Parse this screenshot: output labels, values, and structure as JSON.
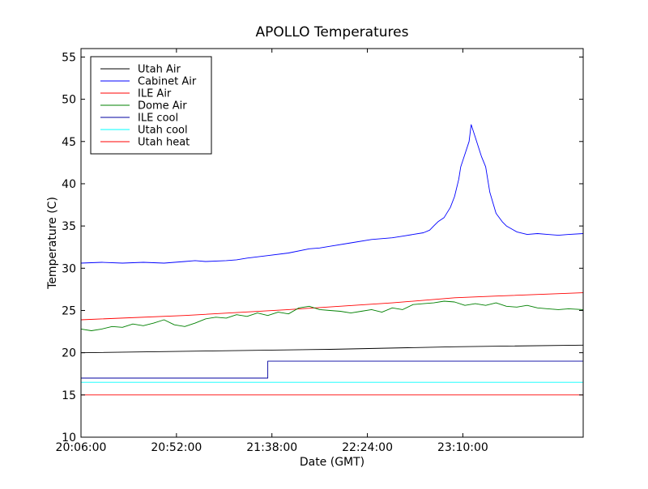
{
  "chart_data": {
    "type": "line",
    "title": "APOLLO Temperatures",
    "xlabel": "Date (GMT)",
    "ylabel": "Temperature (C)",
    "x_unit": "minutes since 20:06:00",
    "xlim": [
      0,
      242
    ],
    "ylim": [
      10,
      56
    ],
    "grid": false,
    "legend_position": "top-left",
    "x_ticks": [
      {
        "value": 0,
        "label": "20:06:00"
      },
      {
        "value": 46,
        "label": "20:52:00"
      },
      {
        "value": 92,
        "label": "21:38:00"
      },
      {
        "value": 138,
        "label": "22:24:00"
      },
      {
        "value": 184,
        "label": "23:10:00"
      }
    ],
    "y_ticks": [
      10,
      15,
      20,
      25,
      30,
      35,
      40,
      45,
      50,
      55
    ],
    "series": [
      {
        "name": "Utah Air",
        "color": "#000000",
        "shape": "linear",
        "x": [
          0,
          60,
          120,
          180,
          242
        ],
        "y": [
          20.0,
          20.2,
          20.4,
          20.7,
          20.9
        ]
      },
      {
        "name": "Cabinet Air",
        "color": "#0000ff",
        "shape": "linear",
        "x": [
          0,
          10,
          20,
          30,
          40,
          50,
          55,
          60,
          70,
          75,
          80,
          90,
          100,
          110,
          115,
          120,
          130,
          140,
          150,
          155,
          160,
          165,
          168,
          170,
          172,
          175,
          178,
          180,
          182,
          183,
          185,
          187,
          188,
          190,
          193,
          195,
          197,
          200,
          203,
          205,
          210,
          215,
          220,
          225,
          230,
          235,
          242
        ],
        "y": [
          30.6,
          30.7,
          30.6,
          30.7,
          30.6,
          30.8,
          30.9,
          30.8,
          30.9,
          31.0,
          31.2,
          31.5,
          31.8,
          32.3,
          32.4,
          32.6,
          33.0,
          33.4,
          33.6,
          33.8,
          34.0,
          34.2,
          34.5,
          35.0,
          35.5,
          36.0,
          37.2,
          38.5,
          40.5,
          42.0,
          43.5,
          45.0,
          47.0,
          45.5,
          43.2,
          42.0,
          39.0,
          36.5,
          35.5,
          35.0,
          34.3,
          34.0,
          34.1,
          34.0,
          33.9,
          34.0,
          34.1
        ]
      },
      {
        "name": "ILE Air",
        "color": "#ff0000",
        "shape": "linear",
        "x": [
          0,
          50,
          100,
          150,
          180,
          200,
          242
        ],
        "y": [
          23.9,
          24.4,
          25.1,
          25.9,
          26.5,
          26.7,
          27.1
        ]
      },
      {
        "name": "Dome Air",
        "color": "#008000",
        "shape": "linear",
        "x": [
          0,
          5,
          10,
          15,
          20,
          25,
          30,
          35,
          40,
          45,
          50,
          55,
          60,
          65,
          70,
          75,
          80,
          85,
          90,
          95,
          100,
          105,
          110,
          115,
          120,
          125,
          130,
          135,
          140,
          145,
          150,
          155,
          160,
          165,
          170,
          175,
          180,
          185,
          190,
          195,
          200,
          205,
          210,
          215,
          220,
          225,
          230,
          235,
          242
        ],
        "y": [
          22.8,
          22.6,
          22.8,
          23.1,
          23.0,
          23.4,
          23.2,
          23.5,
          23.9,
          23.3,
          23.1,
          23.5,
          24.0,
          24.2,
          24.1,
          24.5,
          24.3,
          24.7,
          24.4,
          24.8,
          24.6,
          25.3,
          25.5,
          25.1,
          25.0,
          24.9,
          24.7,
          24.9,
          25.1,
          24.8,
          25.3,
          25.1,
          25.7,
          25.8,
          25.9,
          26.1,
          26.0,
          25.6,
          25.8,
          25.6,
          25.9,
          25.5,
          25.4,
          25.6,
          25.3,
          25.2,
          25.1,
          25.2,
          25.1
        ]
      },
      {
        "name": "ILE cool",
        "color": "#0000a0",
        "shape": "step",
        "x": [
          0,
          90,
          90,
          242
        ],
        "y": [
          17.0,
          17.0,
          19.0,
          19.0
        ]
      },
      {
        "name": "Utah cool",
        "color": "#00ffff",
        "shape": "linear",
        "x": [
          0,
          242
        ],
        "y": [
          16.5,
          16.5
        ]
      },
      {
        "name": "Utah heat",
        "color": "#ff0000",
        "shape": "linear",
        "x": [
          0,
          242
        ],
        "y": [
          15.0,
          15.0
        ]
      }
    ]
  }
}
